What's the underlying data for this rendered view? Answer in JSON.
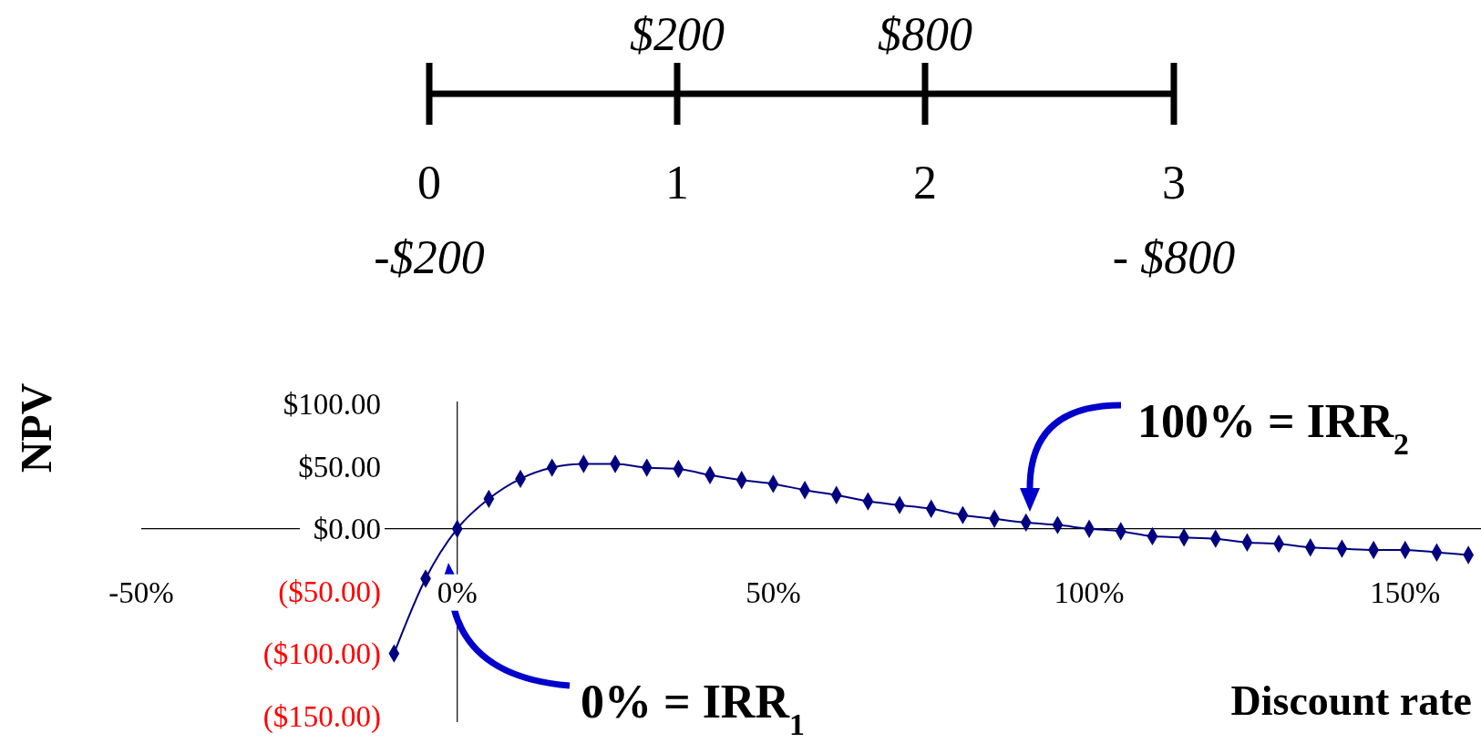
{
  "chart_data": {
    "type": "line",
    "xlabel": "Discount rate",
    "ylabel": "NPV",
    "color": "#000080",
    "marker": "diamond",
    "x": [
      -10,
      -5,
      0,
      5,
      10,
      15,
      20,
      25,
      30,
      35,
      40,
      45,
      50,
      55,
      60,
      65,
      70,
      75,
      80,
      85,
      90,
      95,
      100,
      105,
      110,
      115,
      120,
      125,
      130,
      135,
      140,
      145,
      150,
      155,
      160
    ],
    "values": [
      -100,
      -40,
      0,
      24,
      40,
      49,
      52,
      52,
      49,
      48,
      43,
      39,
      36,
      31,
      27,
      22,
      19,
      16,
      11,
      8,
      5,
      3,
      0,
      -2,
      -6,
      -7,
      -8,
      -11,
      -12,
      -15,
      -16,
      -17,
      -17,
      -19,
      -21
    ],
    "xlim": [
      -50,
      162
    ],
    "ylim": [
      -155,
      102
    ],
    "xticks": [
      {
        "value": -50,
        "label": "-50%"
      },
      {
        "value": 0,
        "label": "0%"
      },
      {
        "value": 50,
        "label": "50%"
      },
      {
        "value": 100,
        "label": "100%"
      },
      {
        "value": 150,
        "label": "150%"
      }
    ],
    "yticks": [
      {
        "value": 100,
        "label": "$100.00"
      },
      {
        "value": 50,
        "label": "$50.00"
      },
      {
        "value": 0,
        "label": "$0.00"
      },
      {
        "value": -50,
        "label": "($50.00)"
      },
      {
        "value": -100,
        "label": "($100.00)"
      },
      {
        "value": -150,
        "label": "($150.00)"
      }
    ],
    "annotations": [
      "0% = IRR$_{1}$",
      "100% = IRR$_{2}$",
      "0",
      "1",
      "2",
      "3",
      "-$200",
      "$200",
      "$800",
      "- $800"
    ]
  }
}
